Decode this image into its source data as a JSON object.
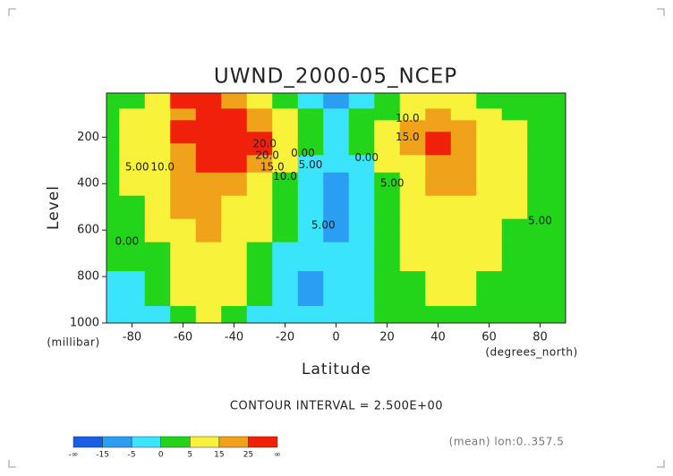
{
  "chart_data": {
    "type": "contour",
    "title": "UWND_2000-05_NCEP",
    "x_label": "Latitude",
    "x_unit": "(degrees_north)",
    "y_label": "Level",
    "y_unit": "(millibar)",
    "contour_interval": "CONTOUR INTERVAL = 2.500E+00",
    "footnote": "(mean) lon:0..357.5",
    "xlim": [
      -90,
      90
    ],
    "xticks": [
      -80,
      -60,
      -40,
      -20,
      0,
      20,
      40,
      60,
      80
    ],
    "ylim": [
      1000,
      10
    ],
    "yticks": [
      200,
      400,
      600,
      800,
      1000
    ],
    "x": [
      -90,
      -80,
      -70,
      -60,
      -50,
      -40,
      -30,
      -20,
      -10,
      0,
      10,
      20,
      30,
      40,
      50,
      60,
      70,
      80,
      90
    ],
    "levels": [
      1000,
      850,
      700,
      600,
      500,
      400,
      300,
      250,
      200,
      150,
      100,
      50
    ],
    "z": [
      [
        -2,
        -2,
        -1,
        3,
        7,
        2,
        -3,
        -4,
        -5,
        -3,
        -1,
        1,
        1,
        3,
        3,
        2,
        1,
        1,
        0
      ],
      [
        -1,
        -1,
        2,
        8,
        10,
        5,
        0,
        -2,
        -6,
        -3,
        -1,
        2,
        3,
        6,
        6,
        4,
        2,
        1,
        0
      ],
      [
        1,
        0,
        4,
        12,
        13,
        8,
        3,
        -1,
        -3,
        -4,
        -1,
        3,
        5,
        9,
        9,
        6,
        3,
        1,
        0
      ],
      [
        2,
        3,
        6,
        14,
        15,
        11,
        5,
        0,
        -3,
        -6,
        -1,
        3,
        7,
        11,
        11,
        7,
        4,
        2,
        1
      ],
      [
        2,
        4,
        8,
        16,
        17,
        14,
        8,
        2,
        -2,
        -7,
        -2,
        3,
        9,
        14,
        13,
        8,
        5,
        2,
        1
      ],
      [
        3,
        6,
        10,
        18,
        20,
        19,
        13,
        4,
        -1,
        -6,
        -2,
        4,
        11,
        18,
        16,
        10,
        5,
        3,
        1
      ],
      [
        3,
        7,
        12,
        22,
        26,
        26,
        22,
        8,
        -1,
        -4,
        -1,
        5,
        14,
        22,
        20,
        12,
        6,
        3,
        2
      ],
      [
        3,
        7,
        13,
        24,
        28,
        30,
        27,
        10,
        0,
        -3,
        0,
        6,
        16,
        25,
        22,
        13,
        7,
        4,
        2
      ],
      [
        3,
        7,
        13,
        25,
        30,
        31,
        28,
        10,
        1,
        -2,
        1,
        7,
        16,
        26,
        21,
        13,
        7,
        4,
        2
      ],
      [
        3,
        6,
        12,
        25,
        30,
        28,
        24,
        8,
        1,
        -1,
        2,
        6,
        15,
        22,
        18,
        11,
        6,
        3,
        2
      ],
      [
        2,
        5,
        10,
        22,
        27,
        25,
        18,
        5,
        0,
        -2,
        1,
        4,
        11,
        16,
        13,
        8,
        4,
        2,
        1
      ],
      [
        1,
        4,
        10,
        26,
        27,
        22,
        14,
        3,
        -3,
        -6,
        -1,
        2,
        6,
        8,
        6,
        4,
        2,
        1,
        0
      ]
    ],
    "colorbar": {
      "labels": [
        "-∞",
        -15,
        -5,
        0,
        5,
        15,
        25,
        "∞"
      ],
      "colors": [
        "#1a5ce6",
        "#2a9ef2",
        "#3ae4fa",
        "#22d41a",
        "#f8f23a",
        "#f0a21a",
        "#f0200a"
      ]
    },
    "contour_labels": [
      {
        "text": "5.00",
        "lat": -78,
        "level": 330
      },
      {
        "text": "10.0",
        "lat": -68,
        "level": 330
      },
      {
        "text": "0.00",
        "lat": -82,
        "level": 650
      },
      {
        "text": "20.0",
        "lat": -28,
        "level": 230
      },
      {
        "text": "20.0",
        "lat": -27,
        "level": 280
      },
      {
        "text": "15.0",
        "lat": -25,
        "level": 330
      },
      {
        "text": "10.0",
        "lat": -20,
        "level": 370
      },
      {
        "text": "0.00",
        "lat": -13,
        "level": 270
      },
      {
        "text": "5.00",
        "lat": -10,
        "level": 320
      },
      {
        "text": "5.00",
        "lat": -5,
        "level": 580
      },
      {
        "text": "0.00",
        "lat": 12,
        "level": 290
      },
      {
        "text": "5.00",
        "lat": 22,
        "level": 400
      },
      {
        "text": "10.0",
        "lat": 28,
        "level": 120
      },
      {
        "text": "15.0",
        "lat": 28,
        "level": 200
      },
      {
        "text": "5.00",
        "lat": 80,
        "level": 560
      }
    ]
  }
}
